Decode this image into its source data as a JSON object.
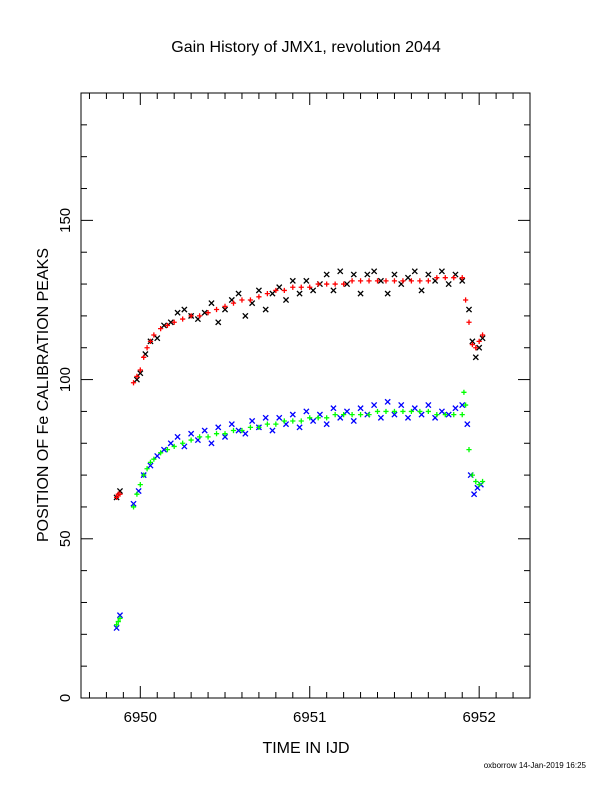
{
  "chart_data": {
    "type": "scatter",
    "title": "Gain History of JMX1, revolution 2044",
    "xlabel": "TIME IN IJD",
    "ylabel": "POSITION OF Fe CALIBRATION PEAKS",
    "xlim": [
      6949.65,
      6952.3
    ],
    "ylim": [
      0,
      190
    ],
    "xticks": [
      6950,
      6951,
      6952
    ],
    "yticks": [
      0,
      50,
      100,
      150
    ],
    "grid": false,
    "footer": "oxborrow 14-Jan-2019 16:25",
    "series": [
      {
        "marker": "x",
        "color": "#000000",
        "points": [
          [
            6949.86,
            63
          ],
          [
            6949.88,
            65
          ],
          [
            6949.98,
            100
          ],
          [
            6950.0,
            102
          ],
          [
            6950.03,
            108
          ],
          [
            6950.06,
            112
          ],
          [
            6950.1,
            113
          ],
          [
            6950.14,
            117
          ],
          [
            6950.18,
            118
          ],
          [
            6950.22,
            121
          ],
          [
            6950.26,
            122
          ],
          [
            6950.3,
            120
          ],
          [
            6950.34,
            119
          ],
          [
            6950.38,
            121
          ],
          [
            6950.42,
            124
          ],
          [
            6950.46,
            118
          ],
          [
            6950.5,
            122
          ],
          [
            6950.54,
            125
          ],
          [
            6950.58,
            127
          ],
          [
            6950.62,
            120
          ],
          [
            6950.66,
            124
          ],
          [
            6950.7,
            128
          ],
          [
            6950.74,
            122
          ],
          [
            6950.78,
            127
          ],
          [
            6950.82,
            129
          ],
          [
            6950.86,
            125
          ],
          [
            6950.9,
            131
          ],
          [
            6950.94,
            127
          ],
          [
            6950.98,
            131
          ],
          [
            6951.02,
            128
          ],
          [
            6951.06,
            130
          ],
          [
            6951.1,
            133
          ],
          [
            6951.14,
            128
          ],
          [
            6951.18,
            134
          ],
          [
            6951.22,
            130
          ],
          [
            6951.26,
            133
          ],
          [
            6951.3,
            127
          ],
          [
            6951.34,
            133
          ],
          [
            6951.38,
            134
          ],
          [
            6951.42,
            131
          ],
          [
            6951.46,
            127
          ],
          [
            6951.5,
            133
          ],
          [
            6951.54,
            130
          ],
          [
            6951.58,
            132
          ],
          [
            6951.62,
            134
          ],
          [
            6951.66,
            128
          ],
          [
            6951.7,
            133
          ],
          [
            6951.74,
            131
          ],
          [
            6951.78,
            134
          ],
          [
            6951.82,
            130
          ],
          [
            6951.86,
            133
          ],
          [
            6951.9,
            131
          ],
          [
            6951.94,
            122
          ],
          [
            6951.96,
            112
          ],
          [
            6951.98,
            107
          ],
          [
            6952.0,
            110
          ],
          [
            6952.02,
            113
          ]
        ]
      },
      {
        "marker": "+",
        "color": "#ff0000",
        "points": [
          [
            6949.86,
            63
          ],
          [
            6949.87,
            64
          ],
          [
            6949.88,
            64
          ],
          [
            6949.96,
            99
          ],
          [
            6949.98,
            101
          ],
          [
            6950.0,
            103
          ],
          [
            6950.02,
            107
          ],
          [
            6950.04,
            110
          ],
          [
            6950.06,
            112
          ],
          [
            6950.08,
            114
          ],
          [
            6950.12,
            116
          ],
          [
            6950.16,
            117
          ],
          [
            6950.2,
            118
          ],
          [
            6950.25,
            119
          ],
          [
            6950.3,
            120
          ],
          [
            6950.35,
            120
          ],
          [
            6950.4,
            121
          ],
          [
            6950.45,
            122
          ],
          [
            6950.5,
            123
          ],
          [
            6950.55,
            124
          ],
          [
            6950.6,
            125
          ],
          [
            6950.65,
            125
          ],
          [
            6950.7,
            126
          ],
          [
            6950.75,
            127
          ],
          [
            6950.8,
            128
          ],
          [
            6950.85,
            128
          ],
          [
            6950.9,
            129
          ],
          [
            6950.95,
            129
          ],
          [
            6951.0,
            129
          ],
          [
            6951.05,
            130
          ],
          [
            6951.1,
            130
          ],
          [
            6951.15,
            130
          ],
          [
            6951.2,
            130
          ],
          [
            6951.25,
            131
          ],
          [
            6951.3,
            131
          ],
          [
            6951.35,
            131
          ],
          [
            6951.4,
            131
          ],
          [
            6951.45,
            131
          ],
          [
            6951.5,
            131
          ],
          [
            6951.55,
            131
          ],
          [
            6951.6,
            131
          ],
          [
            6951.65,
            131
          ],
          [
            6951.7,
            131
          ],
          [
            6951.75,
            132
          ],
          [
            6951.8,
            132
          ],
          [
            6951.85,
            132
          ],
          [
            6951.9,
            132
          ],
          [
            6951.92,
            125
          ],
          [
            6951.94,
            118
          ],
          [
            6951.96,
            111
          ],
          [
            6951.98,
            110
          ],
          [
            6952.0,
            112
          ],
          [
            6952.02,
            114
          ]
        ]
      },
      {
        "marker": "x",
        "color": "#0000ff",
        "points": [
          [
            6949.86,
            22
          ],
          [
            6949.88,
            26
          ],
          [
            6949.96,
            61
          ],
          [
            6949.99,
            65
          ],
          [
            6950.02,
            70
          ],
          [
            6950.06,
            73
          ],
          [
            6950.1,
            76
          ],
          [
            6950.14,
            78
          ],
          [
            6950.18,
            80
          ],
          [
            6950.22,
            82
          ],
          [
            6950.26,
            79
          ],
          [
            6950.3,
            83
          ],
          [
            6950.34,
            81
          ],
          [
            6950.38,
            84
          ],
          [
            6950.42,
            80
          ],
          [
            6950.46,
            85
          ],
          [
            6950.5,
            82
          ],
          [
            6950.54,
            86
          ],
          [
            6950.58,
            84
          ],
          [
            6950.62,
            83
          ],
          [
            6950.66,
            87
          ],
          [
            6950.7,
            85
          ],
          [
            6950.74,
            88
          ],
          [
            6950.78,
            84
          ],
          [
            6950.82,
            88
          ],
          [
            6950.86,
            86
          ],
          [
            6950.9,
            89
          ],
          [
            6950.94,
            85
          ],
          [
            6950.98,
            90
          ],
          [
            6951.02,
            87
          ],
          [
            6951.06,
            89
          ],
          [
            6951.1,
            86
          ],
          [
            6951.14,
            91
          ],
          [
            6951.18,
            88
          ],
          [
            6951.22,
            90
          ],
          [
            6951.26,
            87
          ],
          [
            6951.3,
            91
          ],
          [
            6951.34,
            89
          ],
          [
            6951.38,
            92
          ],
          [
            6951.42,
            88
          ],
          [
            6951.46,
            93
          ],
          [
            6951.5,
            89
          ],
          [
            6951.54,
            92
          ],
          [
            6951.58,
            88
          ],
          [
            6951.62,
            91
          ],
          [
            6951.66,
            89
          ],
          [
            6951.7,
            92
          ],
          [
            6951.74,
            88
          ],
          [
            6951.78,
            90
          ],
          [
            6951.82,
            89
          ],
          [
            6951.86,
            91
          ],
          [
            6951.9,
            92
          ],
          [
            6951.93,
            86
          ],
          [
            6951.95,
            70
          ],
          [
            6951.97,
            64
          ],
          [
            6951.99,
            66
          ],
          [
            6952.01,
            67
          ]
        ]
      },
      {
        "marker": "+",
        "color": "#00ff00",
        "points": [
          [
            6949.86,
            23
          ],
          [
            6949.87,
            24
          ],
          [
            6949.88,
            25
          ],
          [
            6949.96,
            60
          ],
          [
            6949.98,
            64
          ],
          [
            6950.0,
            67
          ],
          [
            6950.02,
            70
          ],
          [
            6950.04,
            72
          ],
          [
            6950.06,
            74
          ],
          [
            6950.08,
            75
          ],
          [
            6950.12,
            77
          ],
          [
            6950.16,
            78
          ],
          [
            6950.2,
            79
          ],
          [
            6950.25,
            80
          ],
          [
            6950.3,
            81
          ],
          [
            6950.35,
            82
          ],
          [
            6950.4,
            82
          ],
          [
            6950.45,
            83
          ],
          [
            6950.5,
            83
          ],
          [
            6950.55,
            84
          ],
          [
            6950.6,
            84
          ],
          [
            6950.65,
            85
          ],
          [
            6950.7,
            85
          ],
          [
            6950.75,
            86
          ],
          [
            6950.8,
            86
          ],
          [
            6950.85,
            87
          ],
          [
            6950.9,
            87
          ],
          [
            6950.95,
            87
          ],
          [
            6951.0,
            88
          ],
          [
            6951.05,
            88
          ],
          [
            6951.1,
            88
          ],
          [
            6951.15,
            89
          ],
          [
            6951.2,
            89
          ],
          [
            6951.25,
            89
          ],
          [
            6951.3,
            89
          ],
          [
            6951.35,
            89
          ],
          [
            6951.4,
            90
          ],
          [
            6951.45,
            90
          ],
          [
            6951.5,
            90
          ],
          [
            6951.55,
            90
          ],
          [
            6951.6,
            90
          ],
          [
            6951.65,
            90
          ],
          [
            6951.7,
            90
          ],
          [
            6951.75,
            89
          ],
          [
            6951.8,
            89
          ],
          [
            6951.85,
            89
          ],
          [
            6951.9,
            89
          ],
          [
            6951.91,
            96
          ],
          [
            6951.92,
            92
          ],
          [
            6951.94,
            78
          ],
          [
            6951.96,
            70
          ],
          [
            6951.98,
            68
          ],
          [
            6952.0,
            67
          ],
          [
            6952.02,
            68
          ]
        ]
      }
    ]
  }
}
